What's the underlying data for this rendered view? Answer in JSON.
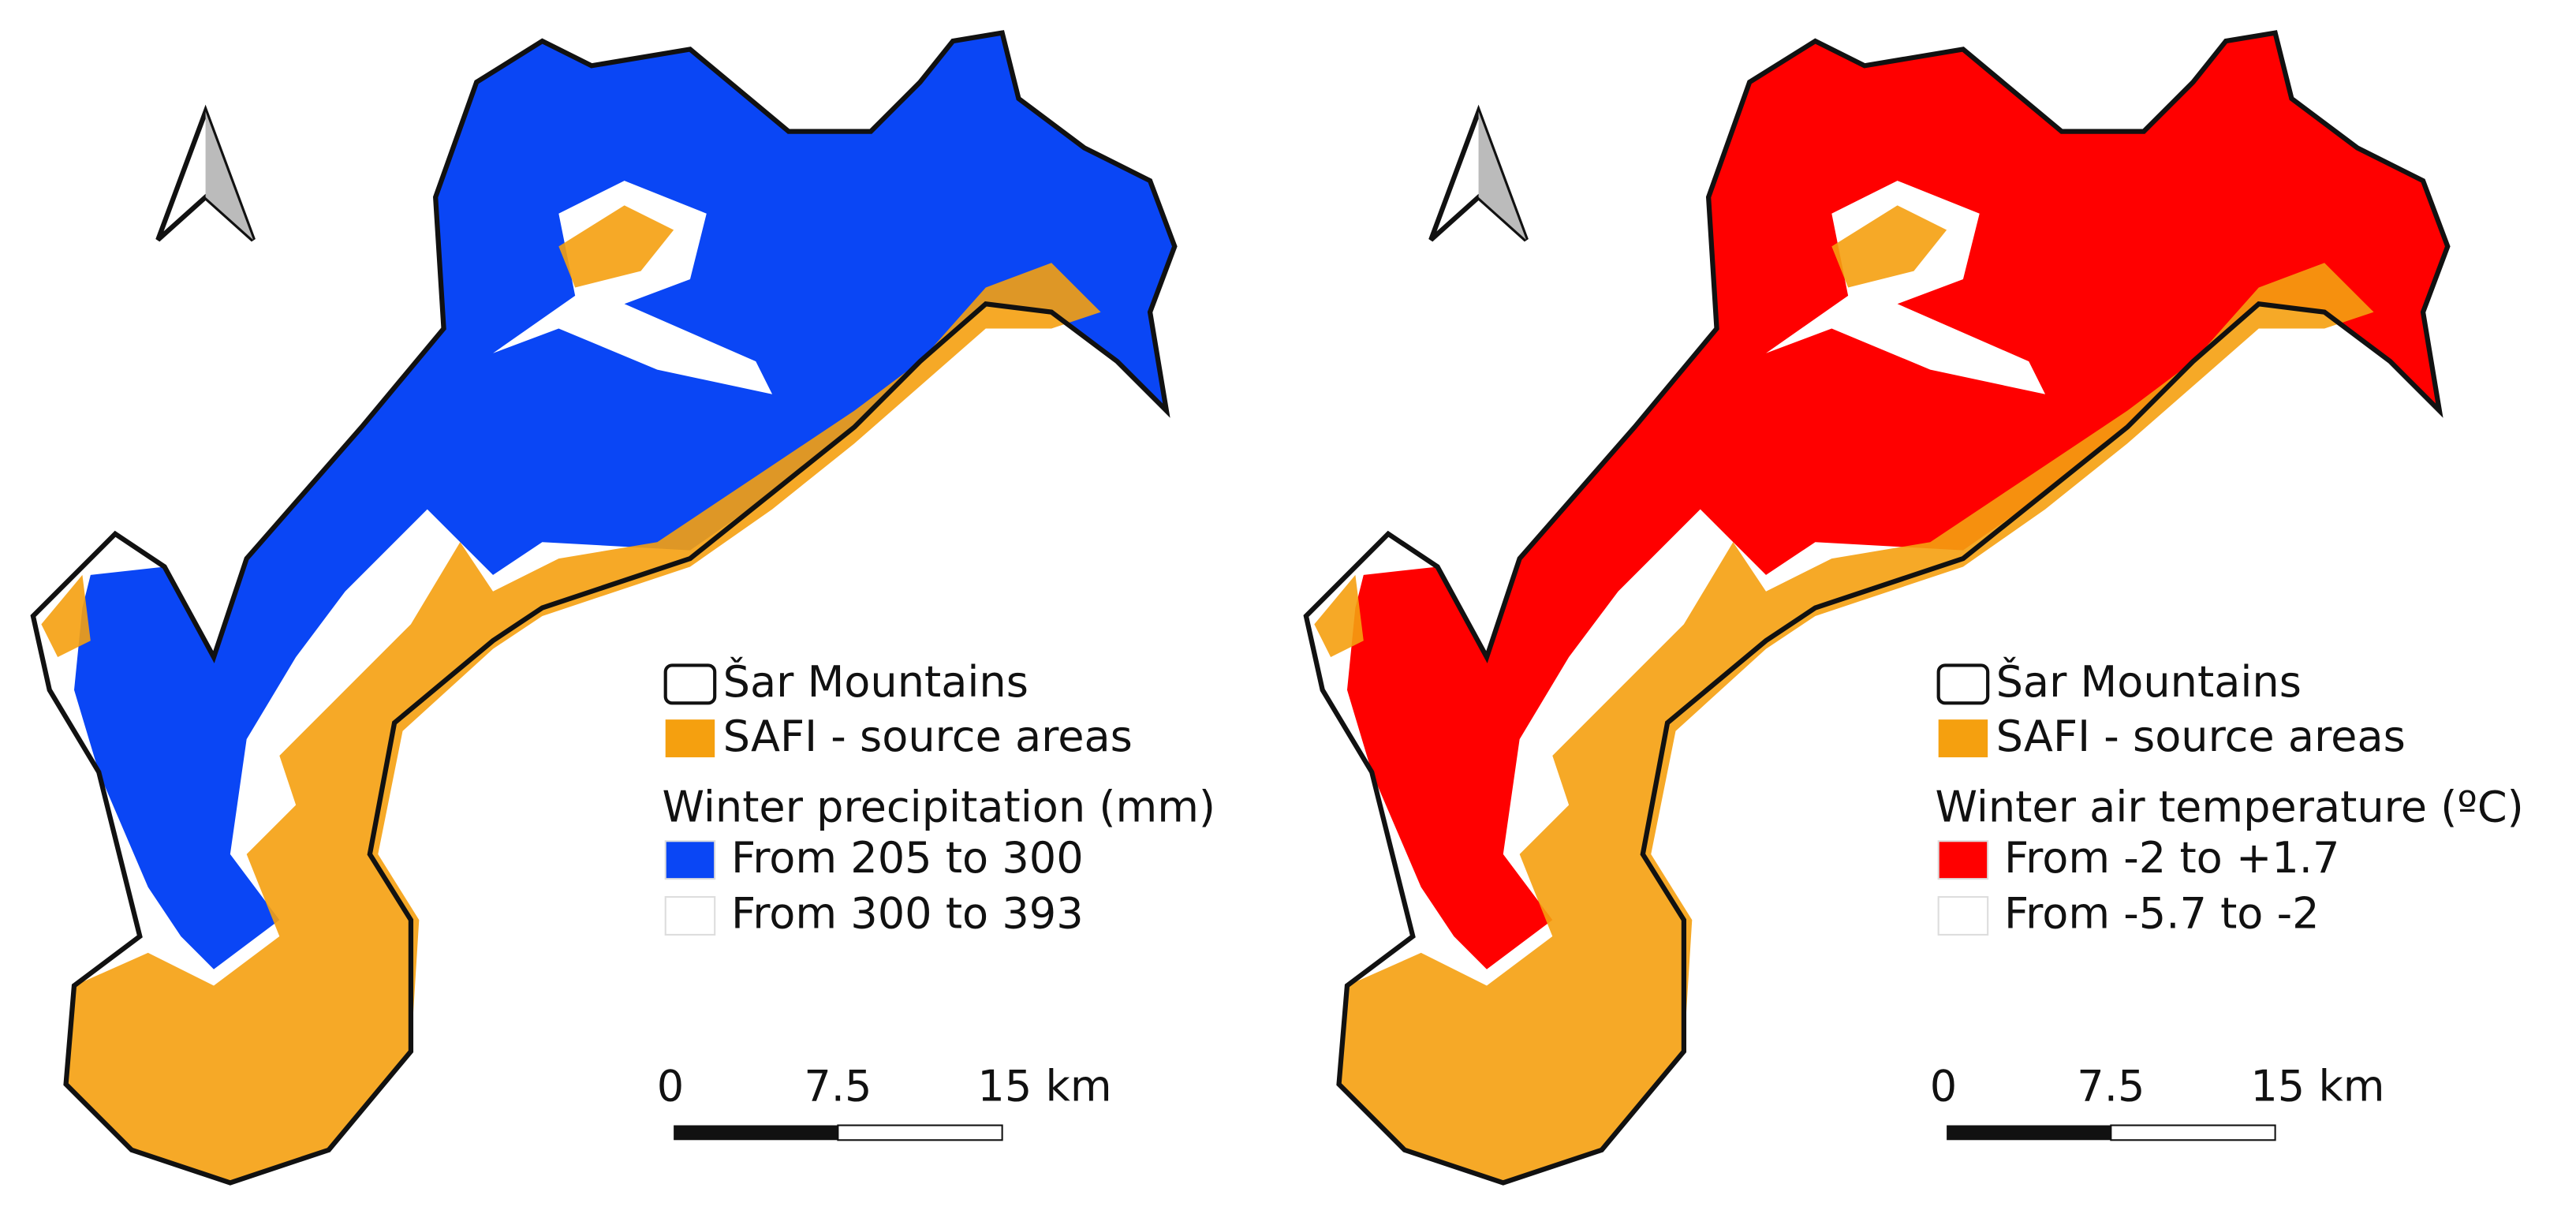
{
  "maps": [
    {
      "legend": {
        "boundary": "Šar Mountains",
        "source": "SAFI - source areas",
        "source_color": "#f5a00f",
        "title": "Winter precipitation (mm)",
        "classes": [
          {
            "label": "From 205 to 300",
            "color": "#0a46f5"
          },
          {
            "label": "From 300 to 393",
            "color": "#ffffff"
          }
        ]
      },
      "scale_bar": {
        "ticks": [
          "0",
          "7.5",
          "15 km"
        ]
      }
    },
    {
      "legend": {
        "boundary": "Šar Mountains",
        "source": "SAFI - source areas",
        "source_color": "#f5a00f",
        "title": "Winter air temperature (ºC)",
        "classes": [
          {
            "label": "From -2 to +1.7",
            "color": "#ff0000"
          },
          {
            "label": "From -5.7 to -2",
            "color": "#ffffff"
          }
        ]
      },
      "scale_bar": {
        "ticks": [
          "0",
          "7.5",
          "15 km"
        ]
      }
    }
  ]
}
